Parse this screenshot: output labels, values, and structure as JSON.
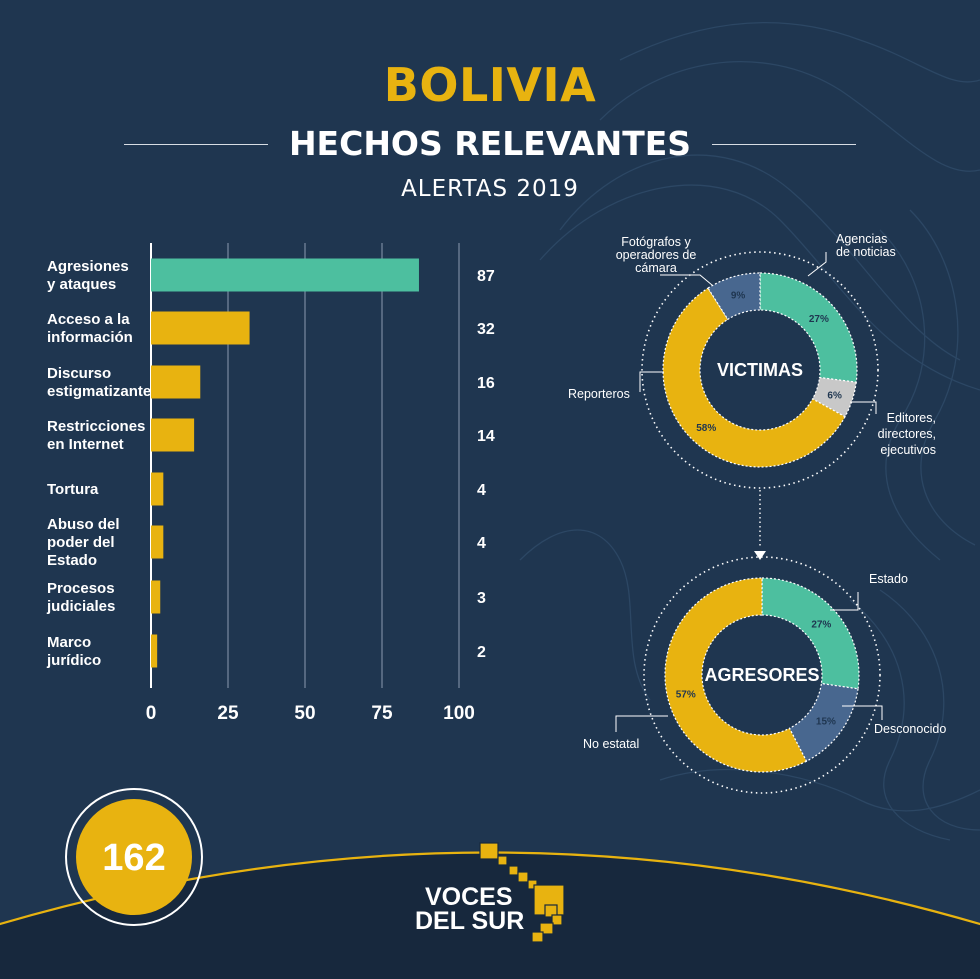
{
  "header": {
    "country": "BOLIVIA",
    "title": "HECHOS RELEVANTES",
    "subtitle": "ALERTAS 2019"
  },
  "colors": {
    "background": "#1f3650",
    "gold": "#e8b310",
    "teal": "#4dbf9f",
    "blue": "#48678f",
    "gray": "#c8c8c8",
    "white": "#ffffff"
  },
  "chart_data": [
    {
      "type": "bar",
      "orientation": "horizontal",
      "categories": [
        [
          "Agresiones",
          "y ataques"
        ],
        [
          "Acceso a la",
          "información"
        ],
        [
          "Discurso",
          "estigmatizante"
        ],
        [
          "Restricciones",
          "en Internet"
        ],
        [
          "Tortura"
        ],
        [
          "Abuso del",
          "poder del",
          "Estado"
        ],
        [
          "Procesos",
          "judiciales"
        ],
        [
          "Marco",
          "jurídico"
        ]
      ],
      "values": [
        87,
        32,
        16,
        14,
        4,
        4,
        3,
        2
      ],
      "value_labels": [
        "87",
        "32",
        "16",
        "14",
        "4",
        "4",
        "3",
        "2"
      ],
      "bar_colors": [
        "#4dbf9f",
        "#e8b310",
        "#e8b310",
        "#e8b310",
        "#e8b310",
        "#e8b310",
        "#e8b310",
        "#e8b310"
      ],
      "xlim": [
        0,
        100
      ],
      "xticks": [
        0,
        25,
        50,
        75,
        100
      ],
      "grid": true
    },
    {
      "type": "pie",
      "donut": true,
      "title": "VICTIMAS",
      "slices": [
        {
          "label": "Agencias de noticias",
          "label_lines": [
            "Agencias",
            "de noticias"
          ],
          "value": 27,
          "pct_label": "27%",
          "color": "#4dbf9f"
        },
        {
          "label": "Editores, directores, ejecutivos",
          "label_lines": [
            "Editores,",
            "directores,",
            "ejecutivos"
          ],
          "value": 6,
          "pct_label": "6%",
          "color": "#c8c8c8"
        },
        {
          "label": "Reporteros",
          "label_lines": [
            "Reporteros"
          ],
          "value": 58,
          "pct_label": "58%",
          "color": "#e8b310"
        },
        {
          "label": "Fotógrafos y operadores de cámara",
          "label_lines": [
            "Fotógrafos y",
            "operadores de",
            "cámara"
          ],
          "value": 9,
          "pct_label": "9%",
          "color": "#48678f"
        }
      ]
    },
    {
      "type": "pie",
      "donut": true,
      "title": "AGRESORES",
      "slices": [
        {
          "label": "Estado",
          "label_lines": [
            "Estado"
          ],
          "value": 27,
          "pct_label": "27%",
          "color": "#4dbf9f"
        },
        {
          "label": "Desconocido",
          "label_lines": [
            "Desconocido"
          ],
          "value": 15,
          "pct_label": "15%",
          "color": "#48678f"
        },
        {
          "label": "No estatal",
          "label_lines": [
            "No estatal"
          ],
          "value": 57,
          "pct_label": "57%",
          "color": "#e8b310"
        }
      ]
    }
  ],
  "total": {
    "value": "162"
  },
  "footer": {
    "logo_lines": [
      "VOCES",
      "DEL SUR"
    ]
  }
}
